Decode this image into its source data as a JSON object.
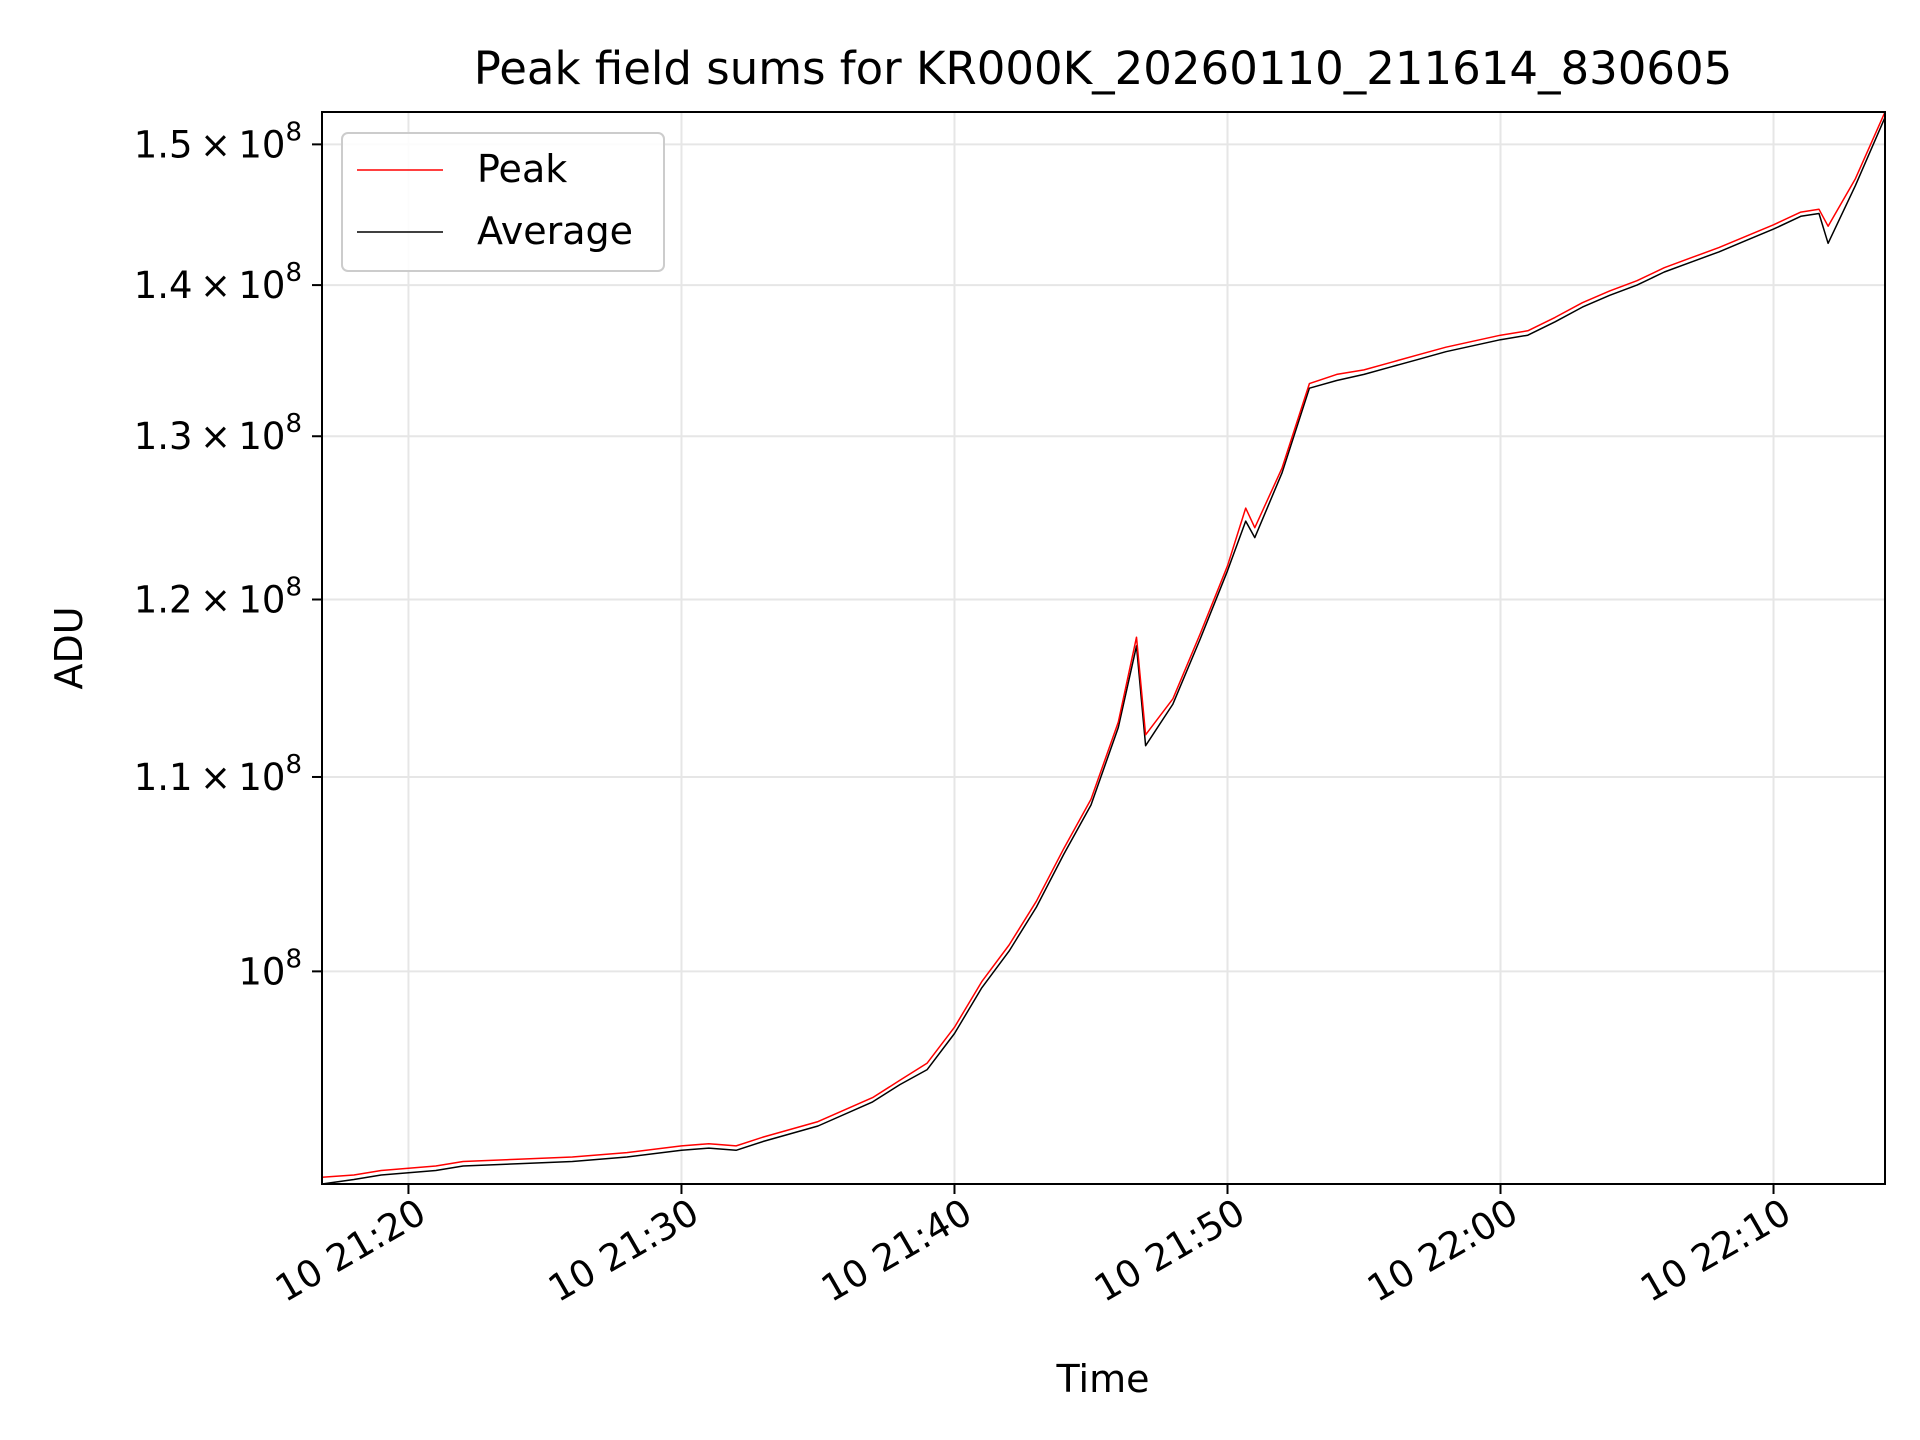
{
  "chart_data": {
    "type": "line",
    "title": "Peak field sums for KR000K_20260110_211614_830605",
    "xlabel": "Time",
    "ylabel": "ADU",
    "x_axis": {
      "kind": "time",
      "range": [
        "2026-01-10 21:16:50",
        "2026-01-10 22:14:05"
      ],
      "ticks": [
        "2026-01-10 21:20",
        "2026-01-10 21:30",
        "2026-01-10 21:40",
        "2026-01-10 21:50",
        "2026-01-10 22:00",
        "2026-01-10 22:10"
      ],
      "tick_labels": [
        "10 21:20",
        "10 21:30",
        "10 21:40",
        "10 21:50",
        "10 22:00",
        "10 22:10"
      ]
    },
    "y_axis": {
      "scale": "log",
      "range": [
        90100000,
        152400000
      ],
      "ticks": [
        100000000,
        110000000,
        120000000,
        130000000,
        140000000,
        150000000
      ],
      "tick_labels": [
        {
          "mantissa": "",
          "exponent": "8"
        },
        {
          "mantissa": "1.1",
          "exponent": "8"
        },
        {
          "mantissa": "1.2",
          "exponent": "8"
        },
        {
          "mantissa": "1.3",
          "exponent": "8"
        },
        {
          "mantissa": "1.4",
          "exponent": "8"
        },
        {
          "mantissa": "1.5",
          "exponent": "8"
        }
      ]
    },
    "grid": true,
    "legend_position": "top-left",
    "legend": [
      {
        "label": "Peak",
        "color": "#ff0000"
      },
      {
        "label": "Average",
        "color": "#000000"
      }
    ],
    "series": [
      {
        "name": "Peak",
        "color": "#ff0000",
        "points": [
          [
            "2026-01-10 21:16:50",
            90400000
          ],
          [
            "2026-01-10 21:18:00",
            90500000
          ],
          [
            "2026-01-10 21:19:00",
            90700000
          ],
          [
            "2026-01-10 21:20:00",
            90800000
          ],
          [
            "2026-01-10 21:21:00",
            90900000
          ],
          [
            "2026-01-10 21:22:00",
            91100000
          ],
          [
            "2026-01-10 21:24:00",
            91200000
          ],
          [
            "2026-01-10 21:26:00",
            91300000
          ],
          [
            "2026-01-10 21:28:00",
            91500000
          ],
          [
            "2026-01-10 21:30:00",
            91800000
          ],
          [
            "2026-01-10 21:31:00",
            91900000
          ],
          [
            "2026-01-10 21:32:00",
            91800000
          ],
          [
            "2026-01-10 21:33:00",
            92200000
          ],
          [
            "2026-01-10 21:35:00",
            92900000
          ],
          [
            "2026-01-10 21:37:00",
            94000000
          ],
          [
            "2026-01-10 21:38:00",
            94800000
          ],
          [
            "2026-01-10 21:39:00",
            95600000
          ],
          [
            "2026-01-10 21:40:00",
            97300000
          ],
          [
            "2026-01-10 21:41:00",
            99500000
          ],
          [
            "2026-01-10 21:42:00",
            101300000
          ],
          [
            "2026-01-10 21:43:00",
            103500000
          ],
          [
            "2026-01-10 21:44:00",
            106200000
          ],
          [
            "2026-01-10 21:45:00",
            108800000
          ],
          [
            "2026-01-10 21:46:00",
            113000000
          ],
          [
            "2026-01-10 21:46:40",
            117800000
          ],
          [
            "2026-01-10 21:47:00",
            112300000
          ],
          [
            "2026-01-10 21:48:00",
            114300000
          ],
          [
            "2026-01-10 21:49:00",
            118000000
          ],
          [
            "2026-01-10 21:50:00",
            122000000
          ],
          [
            "2026-01-10 21:50:40",
            125500000
          ],
          [
            "2026-01-10 21:51:00",
            124300000
          ],
          [
            "2026-01-10 21:52:00",
            128000000
          ],
          [
            "2026-01-10 21:53:00",
            133400000
          ],
          [
            "2026-01-10 21:54:00",
            134000000
          ],
          [
            "2026-01-10 21:55:00",
            134300000
          ],
          [
            "2026-01-10 21:56:00",
            134800000
          ],
          [
            "2026-01-10 21:57:00",
            135300000
          ],
          [
            "2026-01-10 21:58:00",
            135800000
          ],
          [
            "2026-01-10 21:59:00",
            136200000
          ],
          [
            "2026-01-10 22:00:00",
            136600000
          ],
          [
            "2026-01-10 22:01:00",
            136900000
          ],
          [
            "2026-01-10 22:02:00",
            137800000
          ],
          [
            "2026-01-10 22:03:00",
            138800000
          ],
          [
            "2026-01-10 22:04:00",
            139600000
          ],
          [
            "2026-01-10 22:05:00",
            140300000
          ],
          [
            "2026-01-10 22:06:00",
            141200000
          ],
          [
            "2026-01-10 22:07:00",
            141900000
          ],
          [
            "2026-01-10 22:08:00",
            142600000
          ],
          [
            "2026-01-10 22:09:00",
            143400000
          ],
          [
            "2026-01-10 22:10:00",
            144200000
          ],
          [
            "2026-01-10 22:11:00",
            145100000
          ],
          [
            "2026-01-10 22:11:40",
            145300000
          ],
          [
            "2026-01-10 22:12:00",
            144100000
          ],
          [
            "2026-01-10 22:13:00",
            147500000
          ],
          [
            "2026-01-10 22:14:05",
            152400000
          ]
        ]
      },
      {
        "name": "Average",
        "color": "#000000",
        "points": [
          [
            "2026-01-10 21:16:50",
            90100000
          ],
          [
            "2026-01-10 21:18:00",
            90300000
          ],
          [
            "2026-01-10 21:19:00",
            90500000
          ],
          [
            "2026-01-10 21:20:00",
            90600000
          ],
          [
            "2026-01-10 21:21:00",
            90700000
          ],
          [
            "2026-01-10 21:22:00",
            90900000
          ],
          [
            "2026-01-10 21:24:00",
            91000000
          ],
          [
            "2026-01-10 21:26:00",
            91100000
          ],
          [
            "2026-01-10 21:28:00",
            91300000
          ],
          [
            "2026-01-10 21:30:00",
            91600000
          ],
          [
            "2026-01-10 21:31:00",
            91700000
          ],
          [
            "2026-01-10 21:32:00",
            91600000
          ],
          [
            "2026-01-10 21:33:00",
            92000000
          ],
          [
            "2026-01-10 21:35:00",
            92700000
          ],
          [
            "2026-01-10 21:37:00",
            93800000
          ],
          [
            "2026-01-10 21:38:00",
            94600000
          ],
          [
            "2026-01-10 21:39:00",
            95300000
          ],
          [
            "2026-01-10 21:40:00",
            97000000
          ],
          [
            "2026-01-10 21:41:00",
            99200000
          ],
          [
            "2026-01-10 21:42:00",
            101000000
          ],
          [
            "2026-01-10 21:43:00",
            103200000
          ],
          [
            "2026-01-10 21:44:00",
            105900000
          ],
          [
            "2026-01-10 21:45:00",
            108500000
          ],
          [
            "2026-01-10 21:46:00",
            112700000
          ],
          [
            "2026-01-10 21:46:40",
            117300000
          ],
          [
            "2026-01-10 21:47:00",
            111700000
          ],
          [
            "2026-01-10 21:48:00",
            114000000
          ],
          [
            "2026-01-10 21:49:00",
            117700000
          ],
          [
            "2026-01-10 21:50:00",
            121700000
          ],
          [
            "2026-01-10 21:50:40",
            124700000
          ],
          [
            "2026-01-10 21:51:00",
            123700000
          ],
          [
            "2026-01-10 21:52:00",
            127700000
          ],
          [
            "2026-01-10 21:53:00",
            133100000
          ],
          [
            "2026-01-10 21:54:00",
            133600000
          ],
          [
            "2026-01-10 21:55:00",
            134000000
          ],
          [
            "2026-01-10 21:56:00",
            134500000
          ],
          [
            "2026-01-10 21:57:00",
            135000000
          ],
          [
            "2026-01-10 21:58:00",
            135500000
          ],
          [
            "2026-01-10 21:59:00",
            135900000
          ],
          [
            "2026-01-10 22:00:00",
            136300000
          ],
          [
            "2026-01-10 22:01:00",
            136600000
          ],
          [
            "2026-01-10 22:02:00",
            137500000
          ],
          [
            "2026-01-10 22:03:00",
            138500000
          ],
          [
            "2026-01-10 22:04:00",
            139300000
          ],
          [
            "2026-01-10 22:05:00",
            140000000
          ],
          [
            "2026-01-10 22:06:00",
            140900000
          ],
          [
            "2026-01-10 22:07:00",
            141600000
          ],
          [
            "2026-01-10 22:08:00",
            142300000
          ],
          [
            "2026-01-10 22:09:00",
            143100000
          ],
          [
            "2026-01-10 22:10:00",
            143900000
          ],
          [
            "2026-01-10 22:11:00",
            144800000
          ],
          [
            "2026-01-10 22:11:40",
            145000000
          ],
          [
            "2026-01-10 22:12:00",
            142900000
          ],
          [
            "2026-01-10 22:13:00",
            147000000
          ],
          [
            "2026-01-10 22:14:05",
            152000000
          ]
        ]
      }
    ]
  }
}
